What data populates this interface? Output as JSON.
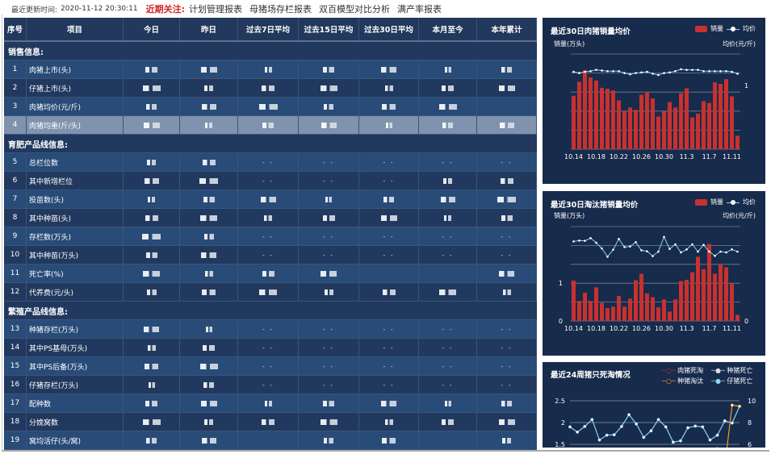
{
  "topbar": {
    "update_label": "最近更新时间:",
    "update_time": "2020-11-12 20:30:11",
    "focus_label": "近期关注:",
    "links": [
      "计划管理报表",
      "母猪场存栏报表",
      "双百模型对比分析",
      "满产率报表"
    ]
  },
  "table": {
    "headers": [
      "序号",
      "项目",
      "今日",
      "昨日",
      "过去7日平均",
      "过去15日平均",
      "过去30日平均",
      "本月至今",
      "本年累计"
    ],
    "sections": [
      {
        "title": "销售信息:",
        "rows": [
          {
            "no": "1",
            "item": "肉猪上市(头)",
            "cells": [
              null,
              null,
              null,
              null,
              null,
              null,
              null
            ]
          },
          {
            "no": "2",
            "item": "仔猪上市(头)",
            "cells": [
              null,
              null,
              null,
              null,
              null,
              null,
              null
            ]
          },
          {
            "no": "3",
            "item": "肉猪均价(元/斤)",
            "cells": [
              null,
              null,
              null,
              null,
              null,
              null,
              ""
            ]
          },
          {
            "no": "4",
            "item": "肉猪均重(斤/头)",
            "cells": [
              null,
              null,
              null,
              null,
              null,
              null,
              null
            ],
            "highlight": true
          }
        ]
      },
      {
        "title": "育肥产品线信息:",
        "rows": [
          {
            "no": "5",
            "item": "总栏位数",
            "cells": [
              null,
              null,
              "- -",
              "- -",
              "- -",
              "- -",
              "- -"
            ]
          },
          {
            "no": "6",
            "item": "其中新增栏位",
            "cells": [
              null,
              null,
              "- -",
              "- -",
              "- -",
              null,
              null
            ]
          },
          {
            "no": "7",
            "item": "投苗数(头)",
            "cells": [
              null,
              null,
              null,
              null,
              null,
              null,
              null
            ]
          },
          {
            "no": "8",
            "item": "其中种苗(头)",
            "cells": [
              null,
              null,
              null,
              null,
              null,
              null,
              null
            ]
          },
          {
            "no": "9",
            "item": "存栏数(万头)",
            "cells": [
              null,
              null,
              "- -",
              "- -",
              "- -",
              "- -",
              "- -"
            ]
          },
          {
            "no": "10",
            "item": "其中种苗(万头)",
            "cells": [
              null,
              null,
              "- -",
              "- -",
              "- -",
              "- -",
              "- -"
            ]
          },
          {
            "no": "11",
            "item": "死亡率(%)",
            "cells": [
              null,
              null,
              null,
              null,
              "",
              "",
              null
            ]
          },
          {
            "no": "12",
            "item": "代养费(元/头)",
            "cells": [
              null,
              null,
              null,
              null,
              null,
              null,
              null
            ]
          }
        ]
      },
      {
        "title": "繁殖产品线信息:",
        "rows": [
          {
            "no": "13",
            "item": "种猪存栏(万头)",
            "cells": [
              null,
              null,
              "- -",
              "- -",
              "- -",
              "- -",
              "- -"
            ]
          },
          {
            "no": "14",
            "item": "其中PS基母(万头)",
            "cells": [
              null,
              null,
              "- -",
              "- -",
              "- -",
              "- -",
              "- -"
            ]
          },
          {
            "no": "15",
            "item": "其中PS后备(万头)",
            "cells": [
              null,
              null,
              "- -",
              "- -",
              "- -",
              "- -",
              "- -"
            ]
          },
          {
            "no": "16",
            "item": "仔猪存栏(万头)",
            "cells": [
              null,
              null,
              "- -",
              "- -",
              "- -",
              "- -",
              "- -"
            ]
          },
          {
            "no": "17",
            "item": "配种数",
            "cells": [
              null,
              null,
              null,
              null,
              null,
              null,
              null
            ]
          },
          {
            "no": "18",
            "item": "分娩窝数",
            "cells": [
              null,
              null,
              null,
              null,
              null,
              null,
              null
            ]
          },
          {
            "no": "19",
            "item": "窝均活仔(头/窝)",
            "cells": [
              null,
              null,
              "",
              null,
              null,
              "",
              null
            ]
          }
        ]
      }
    ]
  },
  "colors": {
    "bar": "#c8312e",
    "line": "#8fd3f0",
    "orange": "#f0a020",
    "panel": "#172b4c"
  },
  "chart_data": [
    {
      "type": "bar+line",
      "title": "最近30日肉猪销量均价",
      "ylabel": "销量(万头)",
      "y2label": "均价(元/斤)",
      "legend": [
        "销量",
        "均价"
      ],
      "ylim": [
        0,
        6
      ],
      "y2lim": [
        0,
        1.5
      ],
      "y2_ticks_visible": [
        "1"
      ],
      "grid": true,
      "legend_position": "top-right",
      "x": [
        "10.14",
        "10.15",
        "10.16",
        "10.17",
        "10.18",
        "10.19",
        "10.20",
        "10.21",
        "10.22",
        "10.23",
        "10.24",
        "10.25",
        "10.26",
        "10.27",
        "10.28",
        "10.29",
        "10.30",
        "10.31",
        "11.1",
        "11.2",
        "11.3",
        "11.4",
        "11.5",
        "11.6",
        "11.7",
        "11.8",
        "11.9",
        "11.10",
        "11.11",
        "11.12"
      ],
      "xticks": [
        "10.14",
        "10.18",
        "10.22",
        "10.26",
        "10.30",
        "11.3",
        "11.7",
        "11.11"
      ],
      "bars": [
        3.37,
        4.25,
        4.98,
        4.52,
        4.33,
        3.87,
        3.81,
        3.7,
        3.08,
        2.4,
        2.63,
        2.48,
        3.43,
        3.63,
        3.2,
        2.06,
        2.38,
        2.97,
        2.63,
        3.53,
        3.84,
        2.0,
        2.24,
        3.03,
        2.91,
        4.22,
        4.12,
        4.42,
        3.33,
        0.85
      ],
      "line": [
        1.22,
        1.2,
        1.22,
        1.23,
        1.25,
        1.24,
        1.23,
        1.23,
        1.23,
        1.2,
        1.18,
        1.2,
        1.21,
        1.22,
        1.19,
        1.17,
        1.2,
        1.21,
        1.23,
        1.26,
        1.25,
        1.25,
        1.25,
        1.23,
        1.23,
        1.23,
        1.23,
        1.23,
        1.22,
        1.19
      ]
    },
    {
      "type": "bar+line",
      "title": "最近30日淘汰猪销量均价",
      "ylabel": "销量(万头)",
      "y2label": "均价(元/斤)",
      "legend": [
        "销量",
        "均价"
      ],
      "ylim": [
        0,
        2.5
      ],
      "y2lim": [
        0,
        10
      ],
      "yticks_visible": [
        "0",
        "1"
      ],
      "y2_ticks_visible": [
        "0"
      ],
      "grid": true,
      "legend_position": "top-right",
      "x": [
        "10.14",
        "10.15",
        "10.16",
        "10.17",
        "10.18",
        "10.19",
        "10.20",
        "10.21",
        "10.22",
        "10.23",
        "10.24",
        "10.25",
        "10.26",
        "10.27",
        "10.28",
        "10.29",
        "10.30",
        "10.31",
        "11.1",
        "11.2",
        "11.3",
        "11.4",
        "11.5",
        "11.6",
        "11.7",
        "11.8",
        "11.9",
        "11.10",
        "11.11",
        "11.12"
      ],
      "xticks": [
        "10.14",
        "10.18",
        "10.22",
        "10.26",
        "10.30",
        "11.3",
        "11.7",
        "11.11"
      ],
      "bars": [
        1.07,
        0.53,
        0.75,
        0.53,
        0.89,
        0.48,
        0.34,
        0.38,
        0.66,
        0.38,
        0.59,
        1.08,
        1.25,
        0.73,
        0.63,
        0.36,
        0.57,
        0.25,
        0.57,
        1.06,
        1.09,
        1.29,
        1.7,
        1.37,
        2.04,
        1.25,
        1.5,
        1.42,
        0.99,
        0.16
      ],
      "line": [
        8.43,
        8.52,
        8.49,
        8.78,
        8.29,
        7.69,
        6.81,
        7.55,
        8.69,
        7.83,
        7.89,
        8.35,
        7.49,
        7.38,
        6.87,
        7.35,
        8.91,
        7.63,
        8.12,
        7.26,
        7.58,
        8.12,
        7.35,
        8.06,
        7.35,
        6.9,
        7.35,
        7.26,
        7.58,
        7.35
      ]
    },
    {
      "type": "line",
      "title": "最近24周猪只死淘情况",
      "ylim": [
        1.5,
        2.5
      ],
      "yticks": [
        "2.5",
        "2",
        "1.5"
      ],
      "y2lim": [
        6,
        10
      ],
      "y2ticks": [
        "10",
        "8",
        "6"
      ],
      "grid": true,
      "legend_position": "top-right",
      "legend": [
        "肉猪死淘",
        "种猪死亡",
        "种猪淘汰",
        "仔猪死亡"
      ],
      "series": [
        {
          "name": "仔猪死亡",
          "axis": "left",
          "values": [
            1.9,
            1.78,
            1.91,
            2.07,
            1.6,
            1.71,
            1.72,
            1.91,
            2.18,
            1.97,
            1.66,
            1.81,
            2.07,
            1.9,
            1.55,
            1.58,
            1.88,
            1.92,
            1.9,
            1.6,
            1.71,
            2.04,
            1.99,
            2.37
          ]
        },
        {
          "name": "种猪淘汰",
          "axis": "right",
          "values": [
            null,
            null,
            null,
            null,
            null,
            null,
            null,
            null,
            null,
            null,
            null,
            null,
            null,
            null,
            null,
            null,
            null,
            null,
            null,
            null,
            5.6,
            4.0,
            9.6,
            9.5
          ]
        }
      ]
    }
  ]
}
